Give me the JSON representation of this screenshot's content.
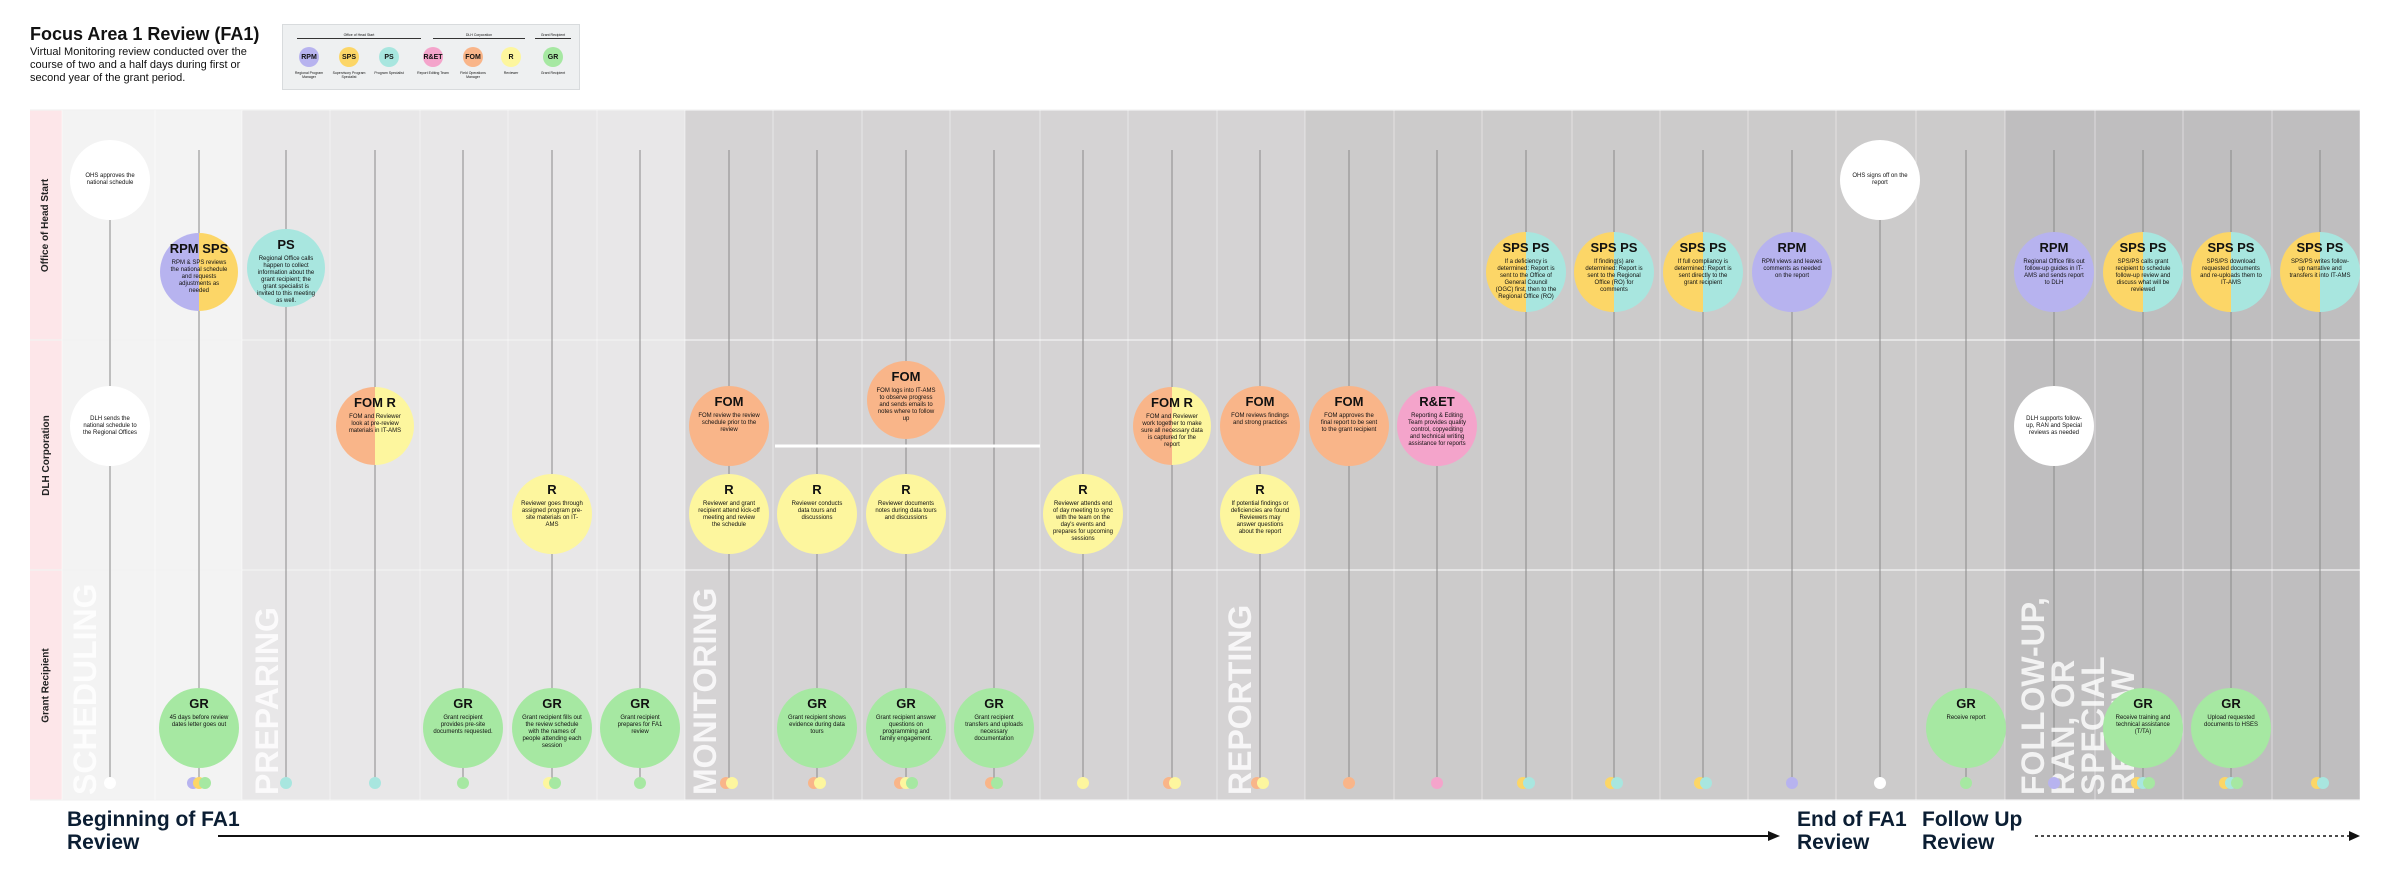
{
  "header": {
    "title": "Focus Area 1 Review (FA1)",
    "subtitle": "Virtual Monitoring review conducted over the course of two and a half days during first or second year of the grant period."
  },
  "legend": {
    "groups": [
      "Office of Head Start",
      "DLH Corporation",
      "Grant Recipient"
    ],
    "items": [
      {
        "abbr": "RPM",
        "label": "Regional Program Manager",
        "color": "#b7b3ef"
      },
      {
        "abbr": "SPS",
        "label": "Supervisory Program Specialist",
        "color": "#fcd667"
      },
      {
        "abbr": "PS",
        "label": "Program Specialist",
        "color": "#a8e6df"
      },
      {
        "abbr": "R&ET",
        "label": "Report Editing Team",
        "color": "#f4a4cb"
      },
      {
        "abbr": "FOM",
        "label": "Field Operations Manager",
        "color": "#f9b589"
      },
      {
        "abbr": "R",
        "label": "Reviewer",
        "color": "#fdf69e"
      },
      {
        "abbr": "GR",
        "label": "Grant Recipient",
        "color": "#a6e8a2"
      }
    ]
  },
  "rows": [
    "Office of Head Start",
    "DLH Corporation",
    "Grant Recipient"
  ],
  "phases": [
    "SCHEDULING",
    "PREPARING",
    "MONITORING",
    "REPORTING",
    "FOLLOW-UP, RAN, OR SPECIAL REVIEW"
  ],
  "steps": [
    {
      "abbr": "",
      "text": "OHS approves the national schedule",
      "color": "#ffffff"
    },
    {
      "abbr": "",
      "text": "DLH sends the national schedule to the Regional Offices",
      "color": "#ffffff"
    },
    {
      "abbr": "RPM SPS",
      "text": "RPM & SPS reviews the national schedule and requests adjustments as needed",
      "color": "#b7b3ef"
    },
    {
      "abbr": "GR",
      "text": "45 days before review dates letter goes out",
      "color": "#a6e8a2"
    },
    {
      "abbr": "PS",
      "text": "Regional Office calls happen to collect information about the grant recipient; the grant specialist is invited to this meeting as well.",
      "color": "#a8e6df"
    },
    {
      "abbr": "FOM R",
      "text": "FOM and Reviewer look at pre-review materials in IT-AMS",
      "color": "#f9b589"
    },
    {
      "abbr": "GR",
      "text": "Grant recipient provides pre-site documents requested.",
      "color": "#a6e8a2"
    },
    {
      "abbr": "R",
      "text": "Reviewer goes through assigned program pre-site materials on IT-AMS",
      "color": "#fdf69e"
    },
    {
      "abbr": "GR",
      "text": "Grant recipient fills out the review schedule with the names of people attending each session",
      "color": "#a6e8a2"
    },
    {
      "abbr": "GR",
      "text": "Grant recipient prepares for FA1 review",
      "color": "#a6e8a2"
    },
    {
      "abbr": "FOM",
      "text": "FOM review the review schedule prior to the review",
      "color": "#f9b589"
    },
    {
      "abbr": "R",
      "text": "Reviewer and grant recipient attend kick-off meeting and review the schedule",
      "color": "#fdf69e"
    },
    {
      "abbr": "R",
      "text": "Reviewer conducts data tours and discussions",
      "color": "#fdf69e"
    },
    {
      "abbr": "GR",
      "text": "Grant recipient shows evidence during data tours",
      "color": "#a6e8a2"
    },
    {
      "abbr": "FOM",
      "text": "FOM logs into IT-AMS to observe progress and sends emails to notes where to follow up",
      "color": "#f9b589"
    },
    {
      "abbr": "R",
      "text": "Reviewer documents notes during data tours and discussions",
      "color": "#fdf69e"
    },
    {
      "abbr": "GR",
      "text": "Grant recipient answer questions on programming and family engagement.",
      "color": "#a6e8a2"
    },
    {
      "abbr": "GR",
      "text": "Grant recipient transfers and uploads necessary documentation",
      "color": "#a6e8a2"
    },
    {
      "abbr": "R",
      "text": "Reviewer attends end of day meeting to sync with the team on the day's events and prepares for upcoming sessions",
      "color": "#fdf69e"
    },
    {
      "abbr": "FOM R",
      "text": "FOM and Reviewer work together to make sure all necessary data is captured for the report",
      "color": "#f9b589"
    },
    {
      "abbr": "FOM",
      "text": "FOM reviews findings and strong practices",
      "color": "#f9b589"
    },
    {
      "abbr": "R",
      "text": "If potential findings or deficiencies are found Reviewers may answer questions about the report",
      "color": "#fdf69e"
    },
    {
      "abbr": "FOM",
      "text": "FOM approves the final report to be sent to the grant recipient",
      "color": "#f9b589"
    },
    {
      "abbr": "R&ET",
      "text": "Reporting & Editing Team provides quality control, copyediting and technical writing assistance for reports",
      "color": "#f4a4cb"
    },
    {
      "abbr": "SPS PS",
      "text": "If a deficiency is determined: Report is sent to the Office of General Council (OGC) first, then to the Regional Office (RO)",
      "color": "#fcd667"
    },
    {
      "abbr": "SPS PS",
      "text": "If finding(s) are determined: Report is sent to the Regional Office (RO) for comments",
      "color": "#fcd667"
    },
    {
      "abbr": "SPS PS",
      "text": "If full compliancy is determined: Report is sent directly to the grant recipient",
      "color": "#fcd667"
    },
    {
      "abbr": "RPM",
      "text": "RPM views and leaves comments as needed on the report",
      "color": "#b7b3ef"
    },
    {
      "abbr": "",
      "text": "OHS signs off on the report",
      "color": "#ffffff"
    },
    {
      "abbr": "GR",
      "text": "Receive report",
      "color": "#a6e8a2"
    },
    {
      "abbr": "RPM",
      "text": "Regional Office fills out follow-up guides in IT-AMS and sends report to DLH",
      "color": "#b7b3ef"
    },
    {
      "abbr": "",
      "text": "DLH supports follow-up, RAN and Special reviews as needed",
      "color": "#ffffff"
    },
    {
      "abbr": "SPS PS",
      "text": "SPS/PS calls grant recipient to schedule follow-up review and discuss what will be reviewed",
      "color": "#fcd667"
    },
    {
      "abbr": "GR",
      "text": "Receive training and technical assistance (T/TA)",
      "color": "#a6e8a2"
    },
    {
      "abbr": "SPS PS",
      "text": "SPS/PS download requested documents and re-uploads them to IT-AMS",
      "color": "#fcd667"
    },
    {
      "abbr": "GR",
      "text": "Upload requested documents to HSES",
      "color": "#a6e8a2"
    },
    {
      "abbr": "SPS PS",
      "text": "SPS/PS writes follow-up narrative and transfers it into IT-AMS",
      "color": "#fcd667"
    }
  ],
  "footer": {
    "start": "Beginning of FA1 Review",
    "end": "End of FA1 Review",
    "follow": "Follow Up Review"
  }
}
